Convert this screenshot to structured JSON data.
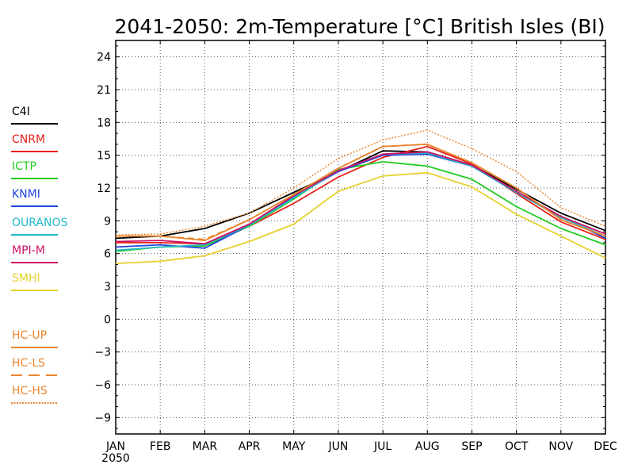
{
  "chart_data": {
    "type": "line",
    "title": "2041-2050: 2m-Temperature [°C] British Isles (BI)",
    "xlabel": "",
    "ylabel": "",
    "categories": [
      "JAN",
      "FEB",
      "MAR",
      "APR",
      "MAY",
      "JUN",
      "JUL",
      "AUG",
      "SEP",
      "OCT",
      "NOV",
      "DEC"
    ],
    "x_year_label": "2050",
    "ylim": [
      -10.5,
      25.5
    ],
    "yticks": [
      -9,
      -6,
      -3,
      0,
      3,
      6,
      9,
      12,
      15,
      18,
      21,
      24
    ],
    "grid": true,
    "legend_position": "left",
    "series": [
      {
        "name": "C4I",
        "color": "#000000",
        "dash": "solid",
        "values": [
          7.4,
          7.6,
          8.3,
          9.7,
          11.6,
          13.5,
          15.4,
          15.3,
          14.1,
          11.9,
          9.7,
          8.1
        ]
      },
      {
        "name": "CNRM",
        "color": "#e8221c",
        "dash": "solid",
        "values": [
          7.0,
          7.0,
          6.9,
          8.5,
          10.6,
          13.0,
          14.8,
          15.8,
          14.2,
          11.5,
          8.9,
          7.3
        ]
      },
      {
        "name": "ICTP",
        "color": "#22cc22",
        "dash": "solid",
        "values": [
          6.2,
          6.6,
          6.7,
          8.5,
          11.0,
          13.7,
          14.4,
          14.0,
          12.8,
          10.3,
          8.3,
          6.8
        ]
      },
      {
        "name": "KNMI",
        "color": "#2244dd",
        "dash": "solid",
        "values": [
          6.6,
          6.8,
          6.5,
          8.6,
          11.2,
          13.5,
          15.0,
          15.1,
          14.0,
          11.6,
          9.4,
          7.4
        ]
      },
      {
        "name": "OURANOS",
        "color": "#22b8c8",
        "dash": "solid",
        "values": [
          6.3,
          6.6,
          6.8,
          8.6,
          11.1,
          13.6,
          15.1,
          15.2,
          14.0,
          11.6,
          9.3,
          7.6
        ]
      },
      {
        "name": "MPI-M",
        "color": "#cc1166",
        "dash": "solid",
        "values": [
          7.1,
          7.2,
          6.9,
          8.7,
          11.3,
          13.6,
          15.1,
          15.3,
          14.1,
          11.7,
          9.4,
          7.8
        ]
      },
      {
        "name": "SMHI",
        "color": "#e5d130",
        "dash": "solid",
        "values": [
          5.1,
          5.3,
          5.8,
          7.1,
          8.7,
          11.7,
          13.1,
          13.4,
          12.1,
          9.6,
          7.6,
          5.6
        ]
      },
      {
        "name": "HC-UP",
        "color": "#e8852e",
        "dash": "solid",
        "values": [
          7.6,
          7.6,
          7.2,
          9.1,
          11.4,
          13.8,
          15.8,
          16.0,
          14.3,
          12.0,
          9.1,
          7.6
        ]
      },
      {
        "name": "HC-LS",
        "color": "#e8852e",
        "dash": "dashed",
        "values": [
          7.6,
          7.6,
          7.3,
          9.1,
          11.4,
          13.8,
          15.8,
          16.0,
          14.3,
          12.0,
          9.1,
          7.6
        ]
      },
      {
        "name": "HC-HS",
        "color": "#e8852e",
        "dash": "dotted",
        "values": [
          7.7,
          7.8,
          8.5,
          9.7,
          12.0,
          14.7,
          16.4,
          17.3,
          15.6,
          13.5,
          10.2,
          8.5
        ]
      }
    ]
  }
}
